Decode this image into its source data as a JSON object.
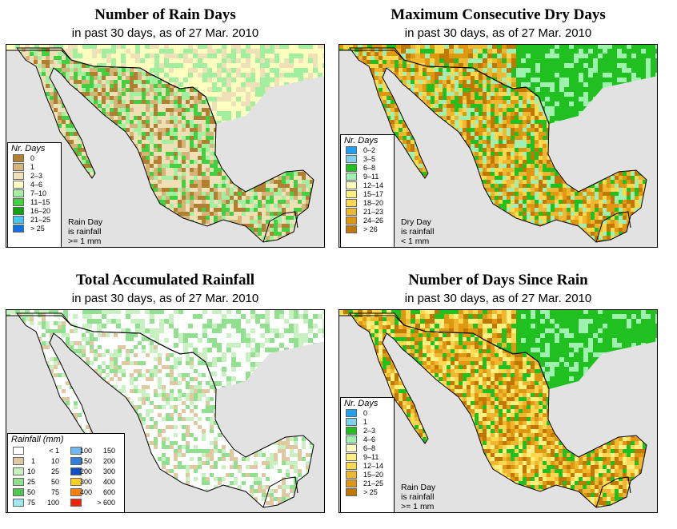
{
  "panels": [
    {
      "title": "Number of Rain Days",
      "subtitle": "in past 30 days, as of  27 Mar. 2010",
      "legend_title": "Nr. Days",
      "legend_items": [
        {
          "label": "0",
          "color": "#b08030"
        },
        {
          "label": "1",
          "color": "#d4b478"
        },
        {
          "label": "2–3",
          "color": "#f0e0b8"
        },
        {
          "label": "4–6",
          "color": "#ffffc0"
        },
        {
          "label": "7–10",
          "color": "#a0f0a0"
        },
        {
          "label": "11–15",
          "color": "#40d040"
        },
        {
          "label": "16–20",
          "color": "#10a010"
        },
        {
          "label": "21–25",
          "color": "#40c8f0"
        },
        {
          "label": "> 25",
          "color": "#1070e0"
        }
      ],
      "note": "Rain Day\nis rainfall\n>= 1 mm",
      "palette": [
        "#b08030",
        "#d4b478",
        "#f0e0b8",
        "#f0e0b8",
        "#a0f0a0",
        "#40d040"
      ]
    },
    {
      "title": "Maximum Consecutive Dry Days",
      "subtitle": "in past 30 days, as of  27 Mar. 2010",
      "legend_title": "Nr. Days",
      "legend_items": [
        {
          "label": "0–2",
          "color": "#20a0f0"
        },
        {
          "label": "3–5",
          "color": "#80d0f0"
        },
        {
          "label": "6–8",
          "color": "#20c020"
        },
        {
          "label": "9–11",
          "color": "#a0f0b0"
        },
        {
          "label": "12–14",
          "color": "#ffffc0"
        },
        {
          "label": "15–17",
          "color": "#fff080"
        },
        {
          "label": "18–20",
          "color": "#ffd850"
        },
        {
          "label": "21–23",
          "color": "#f0b830"
        },
        {
          "label": "24–26",
          "color": "#e09810"
        },
        {
          "label": "> 26",
          "color": "#c07800"
        }
      ],
      "note": "Dry Day\nis rainfall\n< 1 mm",
      "palette": [
        "#e09810",
        "#f0b830",
        "#ffd850",
        "#c07800",
        "#a0f0b0",
        "#20c020"
      ]
    },
    {
      "title": "Total Accumulated Rainfall",
      "subtitle": "in past 30 days, as of  27 Mar. 2010",
      "legend_title": "Rainfall (mm)",
      "legend_items": [
        {
          "lo": "",
          "hi": "< 1",
          "color": "#ffffff"
        },
        {
          "lo": "1",
          "hi": "10",
          "color": "#e0c8a0"
        },
        {
          "lo": "10",
          "hi": "25",
          "color": "#c8f0c0"
        },
        {
          "lo": "25",
          "hi": "50",
          "color": "#90e090"
        },
        {
          "lo": "50",
          "hi": "75",
          "color": "#50c850"
        },
        {
          "lo": "75",
          "hi": "100",
          "color": "#a0e8f0"
        },
        {
          "lo": "100",
          "hi": "150",
          "color": "#70b8f0"
        },
        {
          "lo": "150",
          "hi": "200",
          "color": "#3080e0"
        },
        {
          "lo": "200",
          "hi": "300",
          "color": "#1050c0"
        },
        {
          "lo": "300",
          "hi": "400",
          "color": "#ffd020"
        },
        {
          "lo": "400",
          "hi": "600",
          "color": "#ff8000"
        },
        {
          "lo": "",
          "hi": "> 600",
          "color": "#ff2000"
        }
      ],
      "note": "",
      "palette": [
        "#ffffff",
        "#ffffff",
        "#e0c8a0",
        "#ffffff",
        "#c8f0c0",
        "#90e090"
      ]
    },
    {
      "title": "Number of Days Since Rain",
      "subtitle": "in past 30 days, as of  27 Mar. 2010",
      "legend_title": "Nr. Days",
      "legend_items": [
        {
          "label": "0",
          "color": "#20a0f0"
        },
        {
          "label": "1",
          "color": "#80d0f0"
        },
        {
          "label": "2–3",
          "color": "#20c020"
        },
        {
          "label": "4–6",
          "color": "#a0f0b0"
        },
        {
          "label": "6–8",
          "color": "#ffffc0"
        },
        {
          "label": "9–11",
          "color": "#fff080"
        },
        {
          "label": "12–14",
          "color": "#ffd850"
        },
        {
          "label": "15–20",
          "color": "#f0b830"
        },
        {
          "label": "21–25",
          "color": "#e09810"
        },
        {
          "label": "> 25",
          "color": "#c07800"
        }
      ],
      "note": "Rain Day\nis rainfall\n>= 1 mm",
      "palette": [
        "#f0b830",
        "#e09810",
        "#ffd850",
        "#20c020",
        "#fff080",
        "#c07800"
      ]
    }
  ],
  "colors": {
    "ocean": "#e2e2e2",
    "usa_tint": "#cfefcf",
    "border": "#000000"
  }
}
